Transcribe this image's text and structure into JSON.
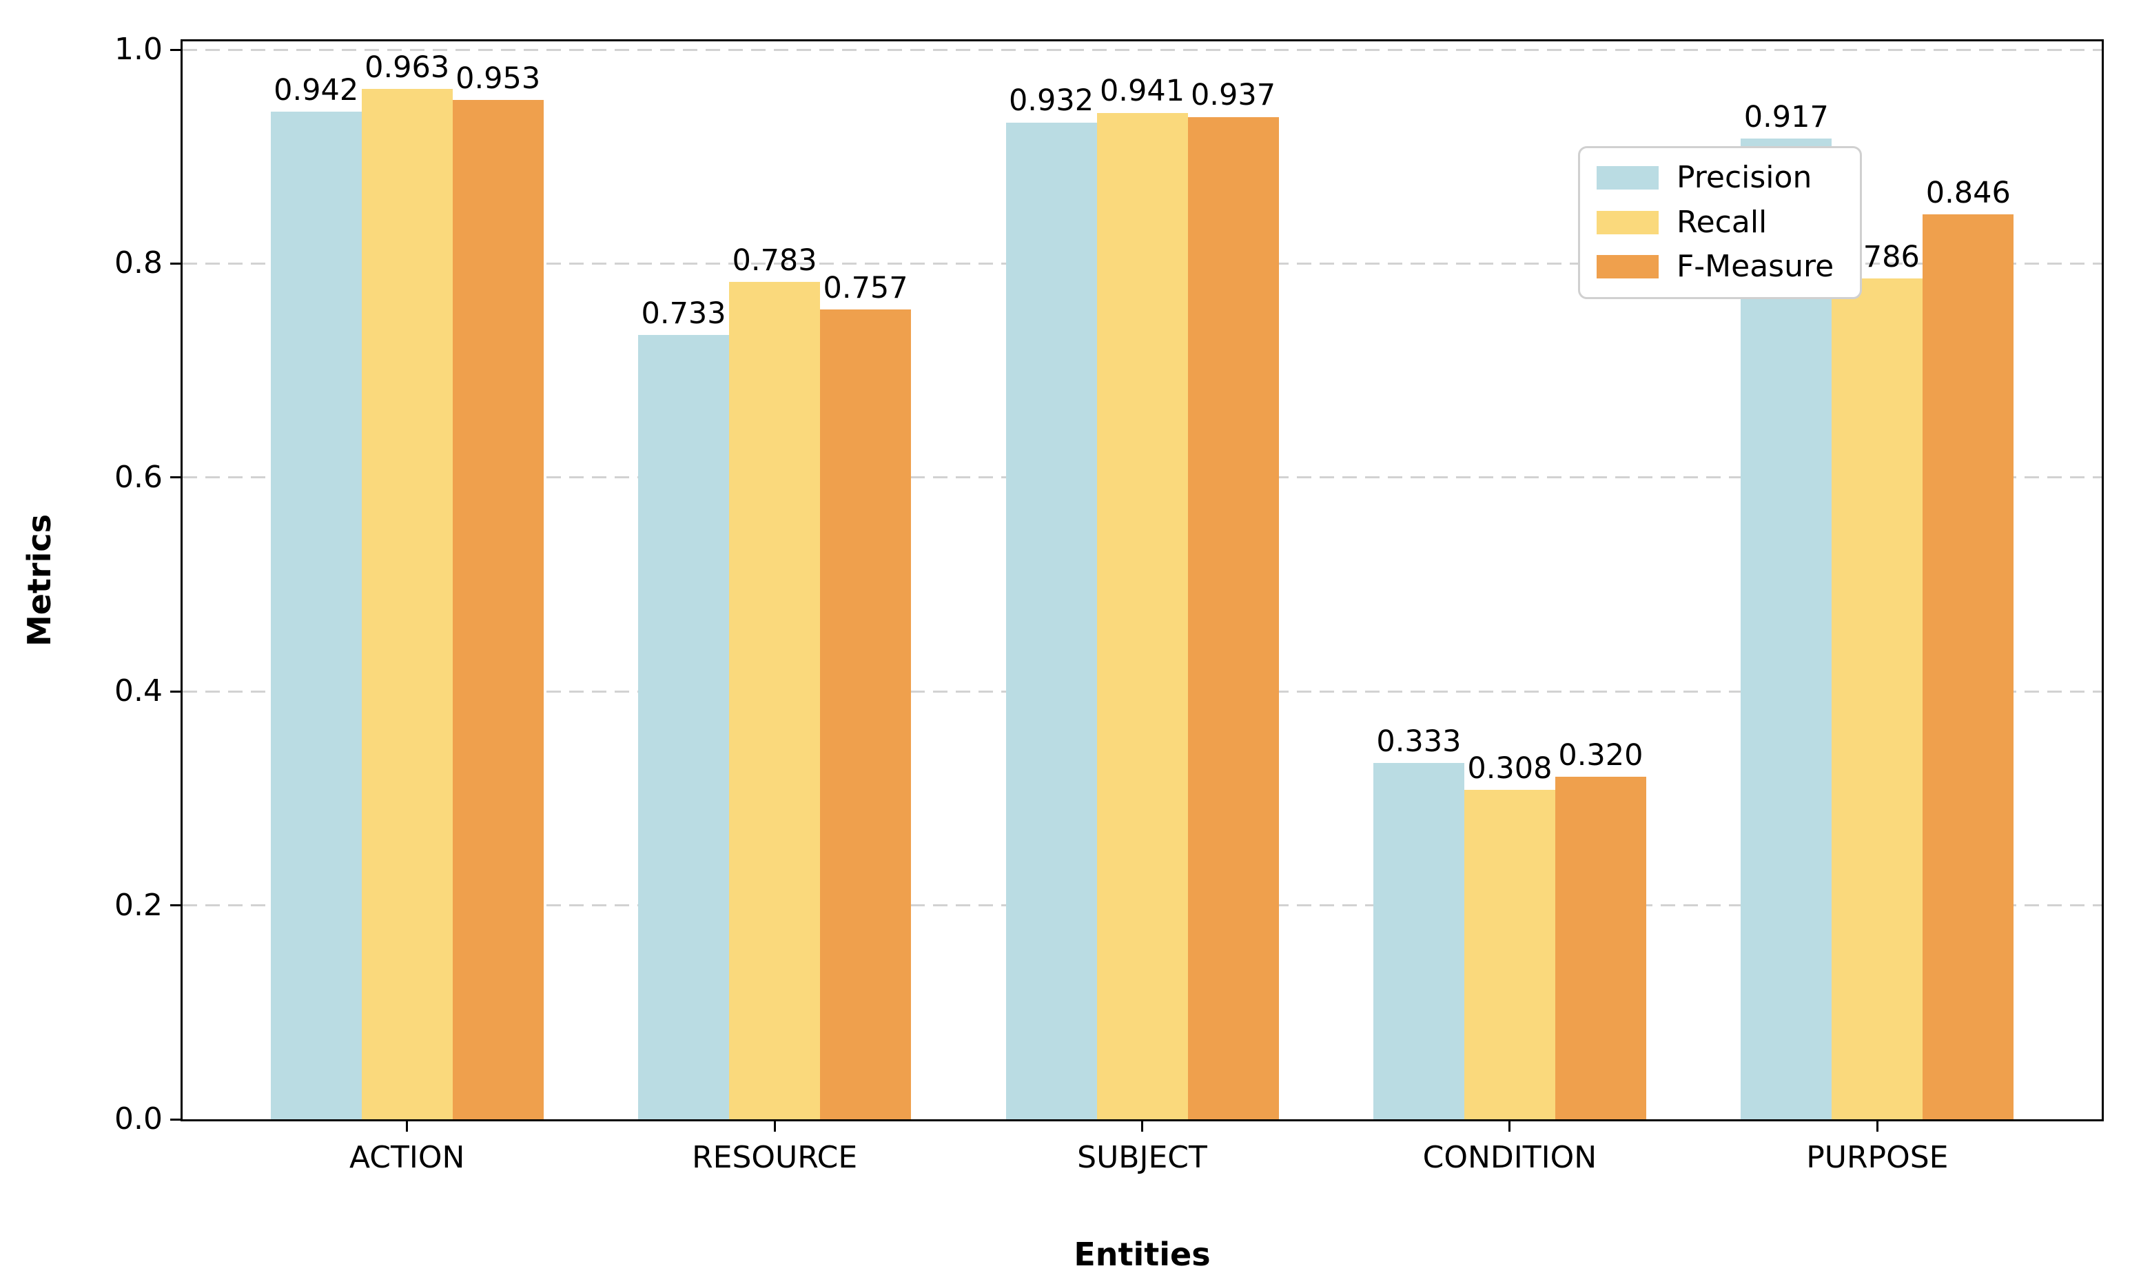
{
  "figure": {
    "background_color": "#ffffff",
    "axes_border_color": "#000000",
    "grid_color": "#d2d2d2"
  },
  "chart_data": {
    "type": "bar",
    "title": "",
    "xlabel": "Entities",
    "ylabel": "Metrics",
    "categories": [
      "ACTION",
      "RESOURCE",
      "SUBJECT",
      "CONDITION",
      "PURPOSE"
    ],
    "series": [
      {
        "name": "Precision",
        "color": "#BADCE3",
        "values": [
          0.942,
          0.733,
          0.932,
          0.333,
          0.917
        ]
      },
      {
        "name": "Recall",
        "color": "#FAD97C",
        "values": [
          0.963,
          0.783,
          0.941,
          0.308,
          0.786
        ]
      },
      {
        "name": "F-Measure",
        "color": "#EFA04D",
        "values": [
          0.953,
          0.757,
          0.937,
          0.32,
          0.846
        ]
      }
    ],
    "ylim": [
      0.0,
      1.0
    ],
    "yticks": [
      0.0,
      0.2,
      0.4,
      0.6,
      0.8,
      1.0
    ],
    "ytick_labels": [
      "0.0",
      "0.2",
      "0.4",
      "0.6",
      "0.8",
      "1.0"
    ],
    "value_label_decimals": 3,
    "grid": {
      "axis": "y",
      "style": "dashed"
    },
    "legend": {
      "position": "upper-right-inside",
      "border_color": "#d0d0d0"
    }
  }
}
